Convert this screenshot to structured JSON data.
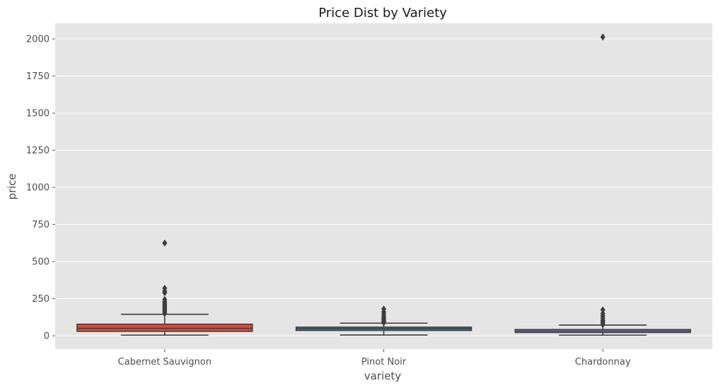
{
  "chart_data": {
    "type": "box",
    "title": "Price Dist by Variety",
    "xlabel": "variety",
    "ylabel": "price",
    "ylim": [
      -90,
      2105
    ],
    "yticks": [
      0,
      250,
      500,
      750,
      1000,
      1250,
      1500,
      1750,
      2000
    ],
    "grid": true,
    "style": "ggplot",
    "categories": [
      "Cabernet Sauvignon",
      "Pinot Noir",
      "Chardonnay"
    ],
    "series": [
      {
        "category": "Cabernet Sauvignon",
        "color": "#e24a33",
        "whisker_low": 4,
        "q1": 30,
        "median": 50,
        "q3": 78,
        "whisker_high": 145,
        "outliers": [
          150,
          160,
          170,
          180,
          190,
          200,
          210,
          220,
          230,
          245,
          290,
          300,
          320,
          625
        ]
      },
      {
        "category": "Pinot Noir",
        "color": "#348abd",
        "whisker_low": 5,
        "q1": 36,
        "median": 47,
        "q3": 58,
        "whisker_high": 85,
        "outliers": [
          88,
          95,
          100,
          110,
          120,
          130,
          145,
          160,
          180
        ]
      },
      {
        "category": "Chardonnay",
        "color": "#988ed5",
        "whisker_low": 4,
        "q1": 22,
        "median": 32,
        "q3": 42,
        "whisker_high": 72,
        "outliers": [
          75,
          85,
          95,
          105,
          120,
          135,
          150,
          175,
          2013
        ]
      }
    ]
  }
}
